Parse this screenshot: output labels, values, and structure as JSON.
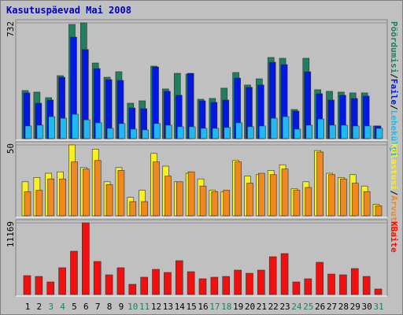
{
  "chart_data": [
    {
      "type": "bar",
      "title": "Kasutuspäevad Mai 2008",
      "ylim": [
        0,
        732
      ],
      "yticks": [
        732
      ],
      "legend_separator": "/",
      "series": [
        {
          "name": "Pöördumisi",
          "color": "#1f7f5f",
          "values": [
            304,
            294,
            259,
            398,
            722,
            732,
            478,
            388,
            423,
            224,
            239,
            458,
            314,
            413,
            408,
            249,
            254,
            319,
            418,
            339,
            378,
            513,
            508,
            184,
            508,
            309,
            299,
            294,
            289,
            289,
            80
          ]
        },
        {
          "name": "Faile",
          "color": "#0018e0",
          "values": [
            289,
            224,
            244,
            388,
            642,
            563,
            443,
            373,
            368,
            194,
            189,
            453,
            299,
            274,
            413,
            239,
            229,
            244,
            383,
            324,
            339,
            483,
            468,
            174,
            423,
            284,
            244,
            274,
            254,
            269,
            80
          ]
        },
        {
          "name": "Lehekülgi",
          "color": "#20b8f0",
          "values": [
            80,
            85,
            139,
            129,
            154,
            119,
            100,
            65,
            95,
            60,
            55,
            95,
            85,
            75,
            75,
            65,
            65,
            70,
            100,
            75,
            80,
            129,
            139,
            60,
            85,
            124,
            85,
            85,
            80,
            80,
            65
          ]
        }
      ]
    },
    {
      "type": "bar",
      "ylim": [
        0,
        50
      ],
      "yticks": [
        50
      ],
      "legend_separator": "/",
      "series": [
        {
          "name": "Külastusi",
          "color": "#f8f020",
          "values": [
            24,
            27,
            30,
            31,
            50,
            34,
            47,
            24,
            34,
            13,
            18,
            44,
            35,
            24,
            30,
            26,
            18,
            17,
            39,
            28,
            29,
            32,
            36,
            19,
            24,
            46,
            30,
            27,
            29,
            21,
            8
          ]
        },
        {
          "name": "Arvuteid",
          "color": "#f08820",
          "values": [
            17,
            18,
            26,
            26,
            38,
            33,
            39,
            22,
            32,
            10,
            10,
            38,
            28,
            24,
            31,
            21,
            17,
            18,
            38,
            23,
            30,
            29,
            33,
            18,
            20,
            45,
            29,
            26,
            23,
            17,
            7
          ]
        }
      ]
    },
    {
      "type": "bar",
      "ylim": [
        0,
        11169
      ],
      "yticks": [
        11169
      ],
      "categories": [
        "1",
        "2",
        "3",
        "4",
        "5",
        "6",
        "7",
        "8",
        "9",
        "10",
        "11",
        "12",
        "13",
        "14",
        "15",
        "16",
        "17",
        "18",
        "19",
        "20",
        "21",
        "22",
        "23",
        "24",
        "25",
        "26",
        "27",
        "28",
        "29",
        "30",
        "31"
      ],
      "category_colors": [
        "#000000",
        "#000000",
        "#208060",
        "#208060",
        "#000000",
        "#000000",
        "#000000",
        "#000000",
        "#000000",
        "#208060",
        "#208060",
        "#000000",
        "#000000",
        "#000000",
        "#000000",
        "#000000",
        "#208060",
        "#208060",
        "#000000",
        "#000000",
        "#000000",
        "#000000",
        "#000000",
        "#208060",
        "#208060",
        "#000000",
        "#000000",
        "#000000",
        "#000000",
        "#000000",
        "#208060"
      ],
      "series": [
        {
          "name": "KBaite",
          "color": "#f01010",
          "values": [
            2945,
            2822,
            1963,
            4173,
            6750,
            11169,
            5154,
            3068,
            4173,
            1595,
            2700,
            3927,
            3436,
            5276,
            3559,
            2454,
            2700,
            2822,
            3804,
            3313,
            3804,
            5890,
            6381,
            1963,
            2454,
            5031,
            3190,
            3068,
            4050,
            2822,
            859
          ]
        }
      ]
    }
  ]
}
